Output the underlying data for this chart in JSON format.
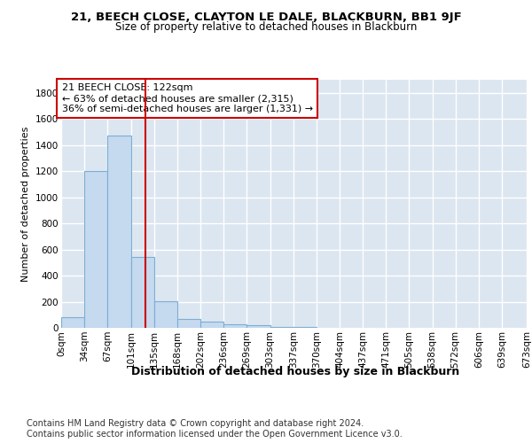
{
  "title1": "21, BEECH CLOSE, CLAYTON LE DALE, BLACKBURN, BB1 9JF",
  "title2": "Size of property relative to detached houses in Blackburn",
  "xlabel": "Distribution of detached houses by size in Blackburn",
  "ylabel": "Number of detached properties",
  "footer": "Contains HM Land Registry data © Crown copyright and database right 2024.\nContains public sector information licensed under the Open Government Licence v3.0.",
  "bin_edges": [
    0,
    33.5,
    67,
    101,
    134.5,
    168,
    201.5,
    235,
    268.5,
    302,
    335.5,
    369,
    402.5,
    436,
    469.5,
    503,
    536.5,
    570,
    603.5,
    637,
    673
  ],
  "bin_labels": [
    "0sqm",
    "34sqm",
    "67sqm",
    "101sqm",
    "135sqm",
    "168sqm",
    "202sqm",
    "236sqm",
    "269sqm",
    "303sqm",
    "337sqm",
    "370sqm",
    "404sqm",
    "437sqm",
    "471sqm",
    "505sqm",
    "538sqm",
    "572sqm",
    "606sqm",
    "639sqm",
    "673sqm"
  ],
  "bar_heights": [
    80,
    1200,
    1470,
    540,
    205,
    65,
    47,
    25,
    20,
    10,
    5,
    0,
    0,
    0,
    0,
    0,
    0,
    0,
    0,
    0
  ],
  "bar_color": "#c5d9ef",
  "bar_edge_color": "#7bafd4",
  "bar_edge_width": 0.8,
  "property_size": 122,
  "property_label": "21 BEECH CLOSE: 122sqm",
  "annotation_line1": "← 63% of detached houses are smaller (2,315)",
  "annotation_line2": "36% of semi-detached houses are larger (1,331) →",
  "red_line_color": "#cc0000",
  "annotation_box_color": "#ffffff",
  "annotation_box_edge": "#cc0000",
  "ylim": [
    0,
    1900
  ],
  "yticks": [
    0,
    200,
    400,
    600,
    800,
    1000,
    1200,
    1400,
    1600,
    1800
  ],
  "bg_color": "#dce6f0",
  "grid_color": "#ffffff",
  "title1_fontsize": 9.5,
  "title2_fontsize": 8.5,
  "xlabel_fontsize": 9,
  "ylabel_fontsize": 8,
  "tick_fontsize": 7.5,
  "annotation_fontsize": 8,
  "footer_fontsize": 7
}
